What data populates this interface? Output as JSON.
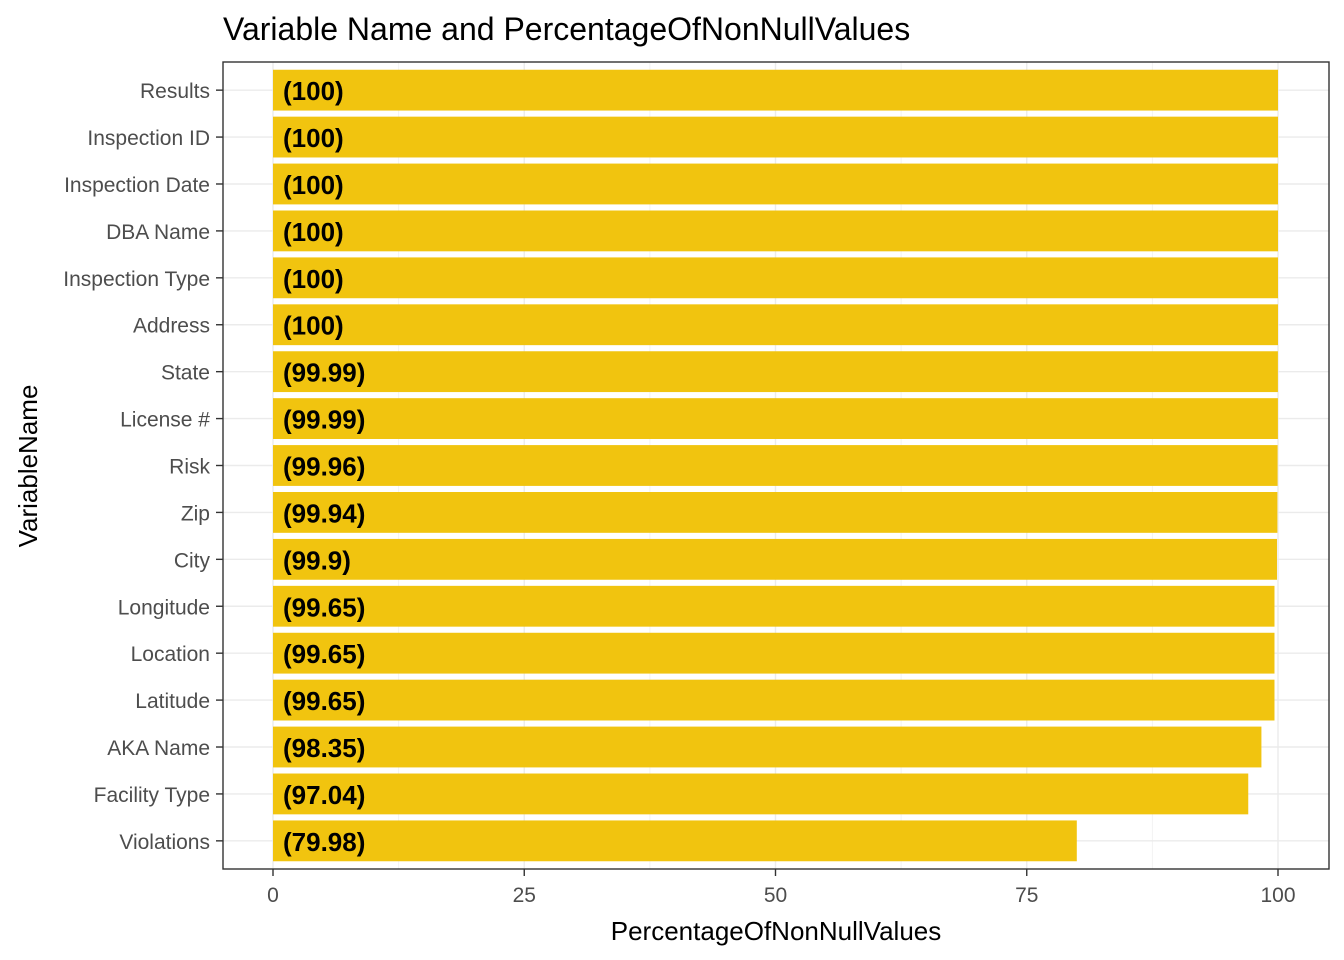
{
  "chart_data": {
    "type": "bar",
    "orientation": "horizontal",
    "title": "Variable Name and PercentageOfNonNullValues",
    "xlabel": "PercentageOfNonNullValues",
    "ylabel": "VariableName",
    "xlim": [
      0,
      100
    ],
    "x_ticks": [
      "0",
      "25",
      "50",
      "75",
      "100"
    ],
    "grid": true,
    "legend": "none",
    "bar_color": "#F1C40F",
    "categories": [
      "Results",
      "Inspection ID",
      "Inspection Date",
      "DBA Name",
      "Inspection Type",
      "Address",
      "State",
      "License #",
      "Risk",
      "Zip",
      "City",
      "Longitude",
      "Location",
      "Latitude",
      "AKA Name",
      "Facility Type",
      "Violations"
    ],
    "values": [
      100,
      100,
      100,
      100,
      100,
      100,
      99.99,
      99.99,
      99.96,
      99.94,
      99.9,
      99.65,
      99.65,
      99.65,
      98.35,
      97.04,
      79.98
    ],
    "labels": [
      "(100)",
      "(100)",
      "(100)",
      "(100)",
      "(100)",
      "(100)",
      "(99.99)",
      "(99.99)",
      "(99.96)",
      "(99.94)",
      "(99.9)",
      "(99.65)",
      "(99.65)",
      "(99.65)",
      "(98.35)",
      "(97.04)",
      "(79.98)"
    ]
  }
}
